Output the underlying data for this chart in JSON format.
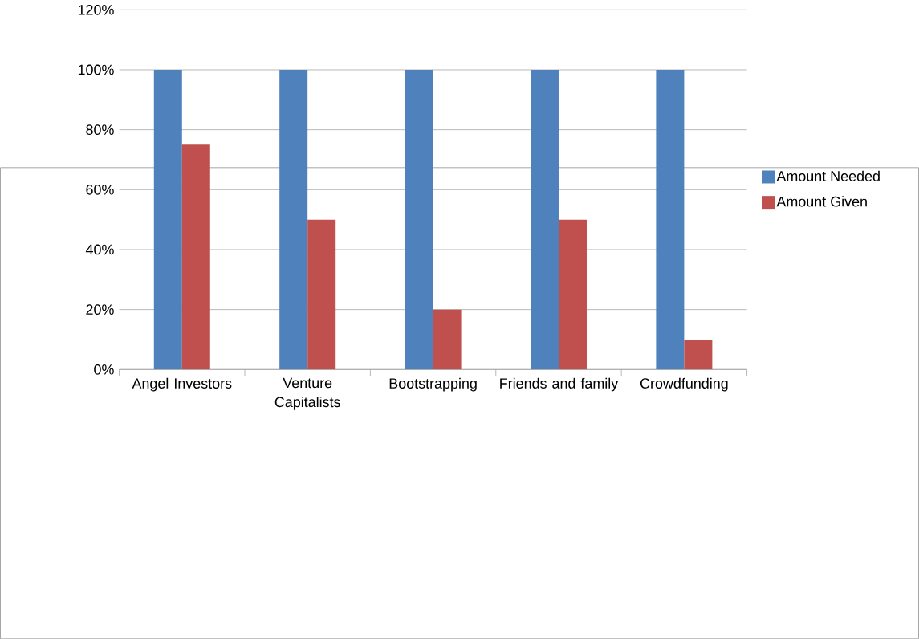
{
  "chart_data": {
    "type": "bar",
    "categories": [
      "Angel Investors",
      "Venture Capitalists",
      "Bootstrapping",
      "Friends and family",
      "Crowdfunding"
    ],
    "series": [
      {
        "name": "Amount Needed",
        "color": "#4f81bd",
        "values": [
          100,
          100,
          100,
          100,
          100
        ]
      },
      {
        "name": "Amount Given",
        "color": "#c0504d",
        "values": [
          75,
          50,
          20,
          50,
          10
        ]
      }
    ],
    "ylim": [
      0,
      120
    ],
    "yticks": [
      {
        "value": 0,
        "label": "0%"
      },
      {
        "value": 20,
        "label": "20%"
      },
      {
        "value": 40,
        "label": "40%"
      },
      {
        "value": 60,
        "label": "60%"
      },
      {
        "value": 80,
        "label": "80%"
      },
      {
        "value": 100,
        "label": "100%"
      },
      {
        "value": 120,
        "label": "120%"
      }
    ],
    "grid": "y",
    "legend": "right"
  }
}
